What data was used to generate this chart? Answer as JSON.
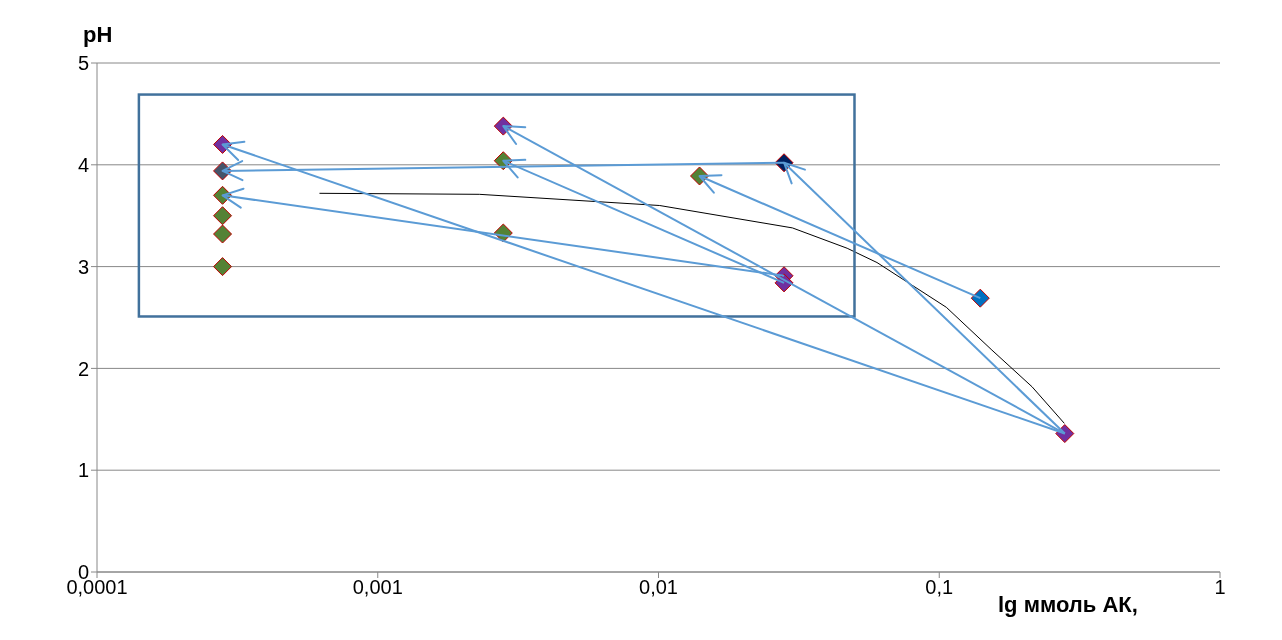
{
  "chart_data": {
    "type": "scatter",
    "ylabel": "pH",
    "xlabel": "lg ммоль АК,",
    "log": "x",
    "xlim": [
      0.0001,
      1
    ],
    "xticks": [
      {
        "value": 0.0001,
        "label": "0,0001"
      },
      {
        "value": 0.001,
        "label": "0,001"
      },
      {
        "value": 0.01,
        "label": "0,01"
      },
      {
        "value": 0.1,
        "label": "0,1"
      },
      {
        "value": 1,
        "label": "1"
      }
    ],
    "ylim": [
      0,
      5
    ],
    "yticks": [
      0,
      1,
      2,
      3,
      4,
      5
    ],
    "grid": "y",
    "series": [
      {
        "type": "scatter",
        "marker": "diamond",
        "x": [
          0.00028,
          0.00028,
          0.00028,
          0.00028,
          0.00028,
          0.00028,
          0.0028,
          0.0028,
          0.0028,
          0.014,
          0.028,
          0.028,
          0.028,
          0.14,
          0.28
        ],
        "values": [
          4.2,
          3.94,
          3.7,
          3.5,
          3.32,
          3.0,
          4.38,
          4.04,
          3.33,
          3.89,
          4.02,
          2.91,
          2.84,
          2.69,
          1.36
        ],
        "colors": [
          "#7030a0",
          "#44546a",
          "#548235",
          "#548235",
          "#548235",
          "#548235",
          "#7030a0",
          "#548235",
          "#548235",
          "#548235",
          "#002060",
          "#7030a0",
          "#7030a0",
          "#0070c0",
          "#7030a0"
        ]
      },
      {
        "type": "line",
        "marker": "none",
        "color": "#000000",
        "x": [
          0.00062,
          0.0023,
          0.0101,
          0.03,
          0.047,
          0.06,
          0.106,
          0.154,
          0.214,
          0.279
        ],
        "values": [
          3.72,
          3.71,
          3.6,
          3.38,
          3.18,
          3.04,
          2.6,
          2.18,
          1.82,
          1.46
        ]
      }
    ]
  }
}
